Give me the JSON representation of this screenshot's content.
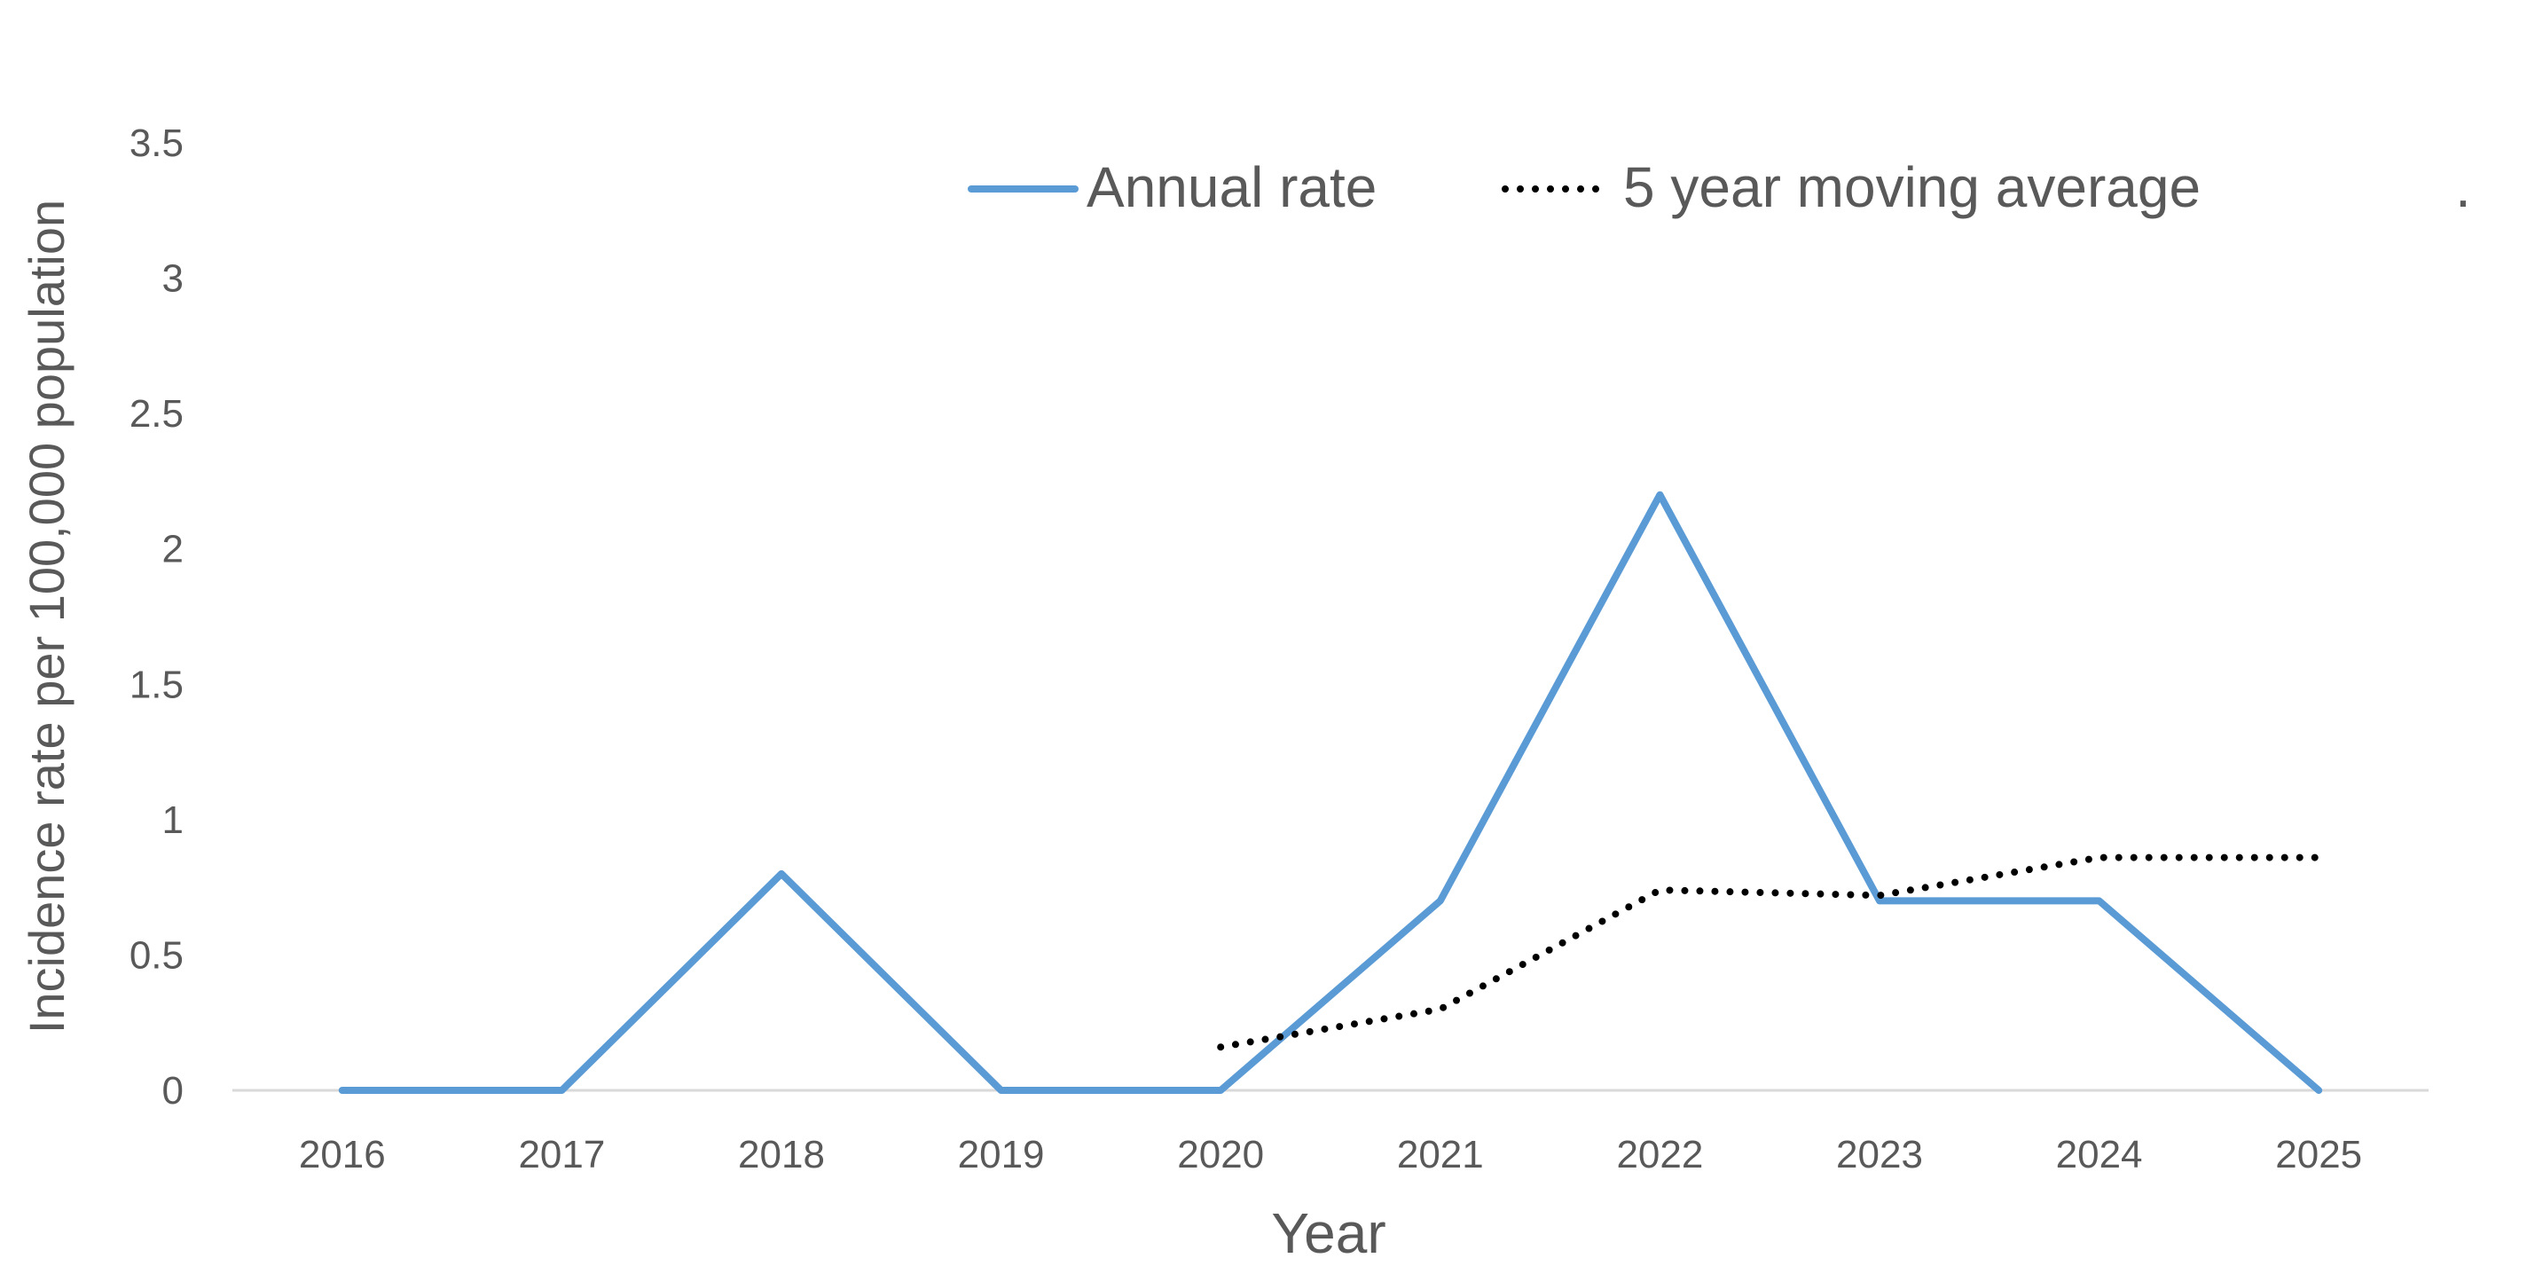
{
  "chart_data": {
    "type": "line",
    "categories": [
      "2016",
      "2017",
      "2018",
      "2019",
      "2020",
      "2021",
      "2022",
      "2023",
      "2024",
      "2025"
    ],
    "series": [
      {
        "name": "Annual rate",
        "values": [
          0,
          0,
          0.8,
          0,
          0,
          0.7,
          2.2,
          0.7,
          0.7,
          0
        ],
        "color": "#5B9BD5",
        "style": "solid"
      },
      {
        "name": "5 year moving average",
        "values": [
          null,
          null,
          null,
          null,
          0.16,
          0.3,
          0.74,
          0.72,
          0.86,
          0.86
        ],
        "color": "#000000",
        "style": "dotted"
      }
    ],
    "title": "",
    "xlabel": "Year",
    "ylabel": "Incidence rate per 100,000 population",
    "ylim": [
      0,
      3.5
    ],
    "yticks": [
      "0",
      "0.5",
      "1",
      "1.5",
      "2",
      "2.5",
      "3",
      "3.5"
    ],
    "grid": false,
    "legend": "top",
    "legend_trailing_mark": "."
  }
}
